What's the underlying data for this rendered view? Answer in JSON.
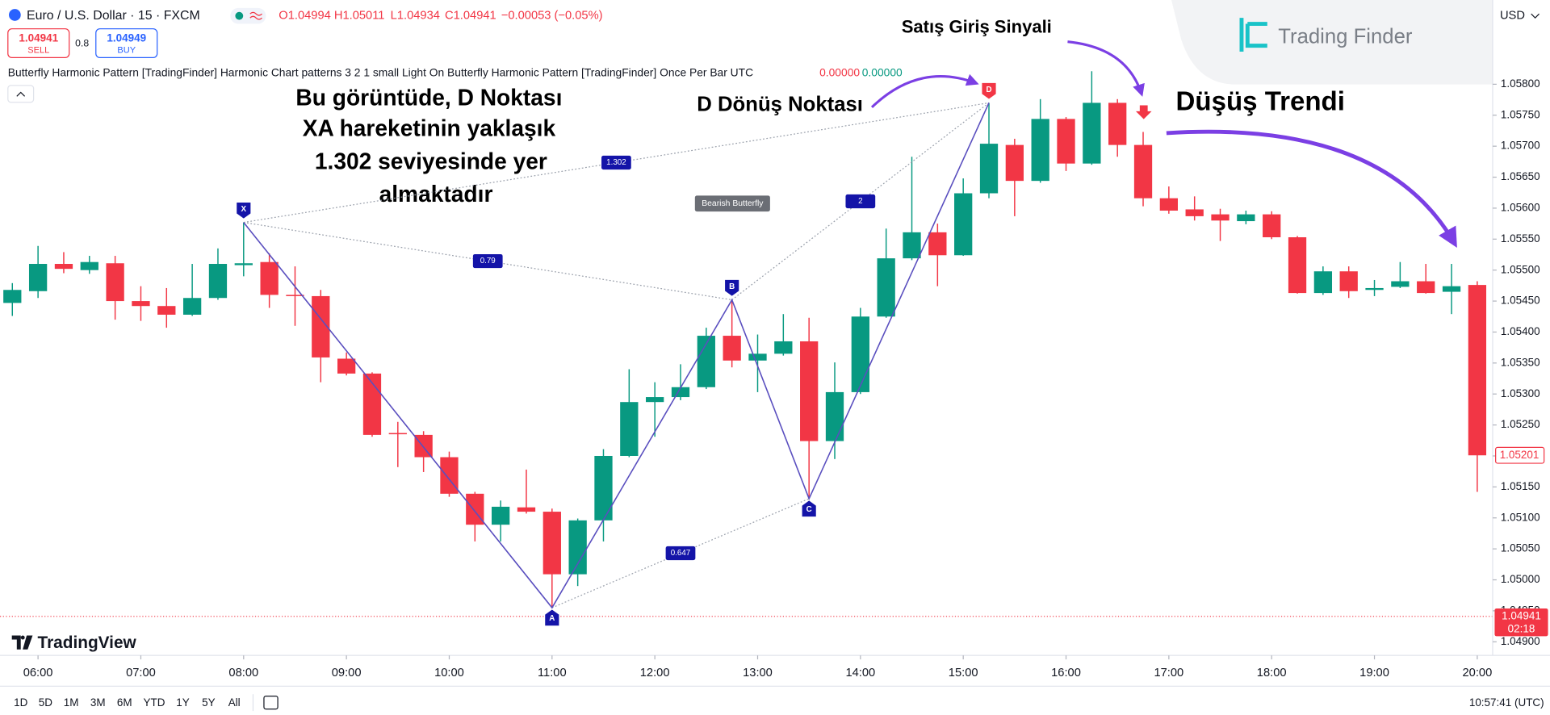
{
  "header": {
    "symbol": "Euro / U.S. Dollar · 15 · FXCM",
    "open": "O1.04994",
    "high": "H1.05011",
    "low": "L1.04934",
    "close": "C1.04941",
    "change": "−0.00053 (−0.05%)",
    "sell_price": "1.04941",
    "sell": "SELL",
    "spread": "0.8",
    "buy_price": "1.04949",
    "buy": "BUY",
    "indicator": "Butterfly Harmonic Pattern [TradingFinder] Harmonic Chart patterns 3 2 1 small Light On Butterfly Harmonic Pattern [TradingFinder] Once Per Bar UTC",
    "indicator_value_1": "0.00000",
    "indicator_value_2": "0.00000",
    "currency": "USD"
  },
  "brand": {
    "tradingfinder": "Trading Finder",
    "tradingview": "TradingView"
  },
  "footer": {
    "ranges": [
      "1D",
      "5D",
      "1M",
      "3M",
      "6M",
      "YTD",
      "1Y",
      "5Y",
      "All"
    ],
    "clock": "10:57:41 (UTC)"
  },
  "annotations": {
    "explanation": [
      "Bu görüntüde, D Noktası",
      "XA hareketinin yaklaşık",
      "1.302 seviyesinde yer",
      "almaktadır"
    ],
    "entry_signal": "Satış Giriş Sinyali",
    "d_point": "D Dönüş Noktası",
    "trend": "Düşüş Trendi"
  },
  "chart_data": {
    "type": "candlestick",
    "x": [
      5.75,
      6,
      6.25,
      6.5,
      6.75,
      7,
      7.25,
      7.5,
      7.75,
      8,
      8.25,
      8.5,
      8.75,
      9,
      9.25,
      9.5,
      9.75,
      10,
      10.25,
      10.5,
      10.75,
      11,
      11.25,
      11.5,
      11.75,
      12,
      12.25,
      12.5,
      12.75,
      13,
      13.25,
      13.5,
      13.75,
      14,
      14.25,
      14.5,
      14.75,
      15,
      15.25,
      15.5,
      15.75,
      16,
      16.25,
      16.5,
      16.75,
      17,
      17.25,
      17.5,
      17.75,
      18,
      18.25,
      18.5,
      18.75,
      19,
      19.25,
      19.5,
      19.75,
      20
    ],
    "open": [
      1.05447,
      1.05466,
      1.0551,
      1.055,
      1.05511,
      1.0545,
      1.05442,
      1.05428,
      1.05455,
      1.05508,
      1.05513,
      1.0546,
      1.05458,
      1.05357,
      1.05333,
      1.05237,
      1.05234,
      1.05198,
      1.05139,
      1.05089,
      1.05117,
      1.0511,
      1.05009,
      1.05096,
      1.052,
      1.05287,
      1.05295,
      1.05311,
      1.05394,
      1.05354,
      1.05365,
      1.05385,
      1.05224,
      1.05303,
      1.05425,
      1.05519,
      1.05561,
      1.05524,
      1.05624,
      1.05702,
      1.05644,
      1.05744,
      1.05672,
      1.0577,
      1.05702,
      1.05616,
      1.05598,
      1.0559,
      1.05579,
      1.0559,
      1.05553,
      1.05463,
      1.05498,
      1.05468,
      1.05473,
      1.05482,
      1.05465,
      1.05476
    ],
    "high": [
      1.05479,
      1.05539,
      1.05529,
      1.05523,
      1.05523,
      1.05474,
      1.05471,
      1.0551,
      1.05535,
      1.05577,
      1.05527,
      1.05506,
      1.05468,
      1.05367,
      1.05335,
      1.05255,
      1.0524,
      1.05207,
      1.05142,
      1.05128,
      1.05178,
      1.05115,
      1.05099,
      1.05211,
      1.0534,
      1.05319,
      1.05348,
      1.05407,
      1.05452,
      1.05396,
      1.05429,
      1.05423,
      1.05351,
      1.05439,
      1.05567,
      1.05683,
      1.05575,
      1.05648,
      1.0577,
      1.05712,
      1.05776,
      1.05747,
      1.05821,
      1.05776,
      1.05723,
      1.05635,
      1.05619,
      1.05599,
      1.05596,
      1.05595,
      1.05555,
      1.05506,
      1.05506,
      1.05484,
      1.05513,
      1.0551,
      1.0551,
      1.05482
    ],
    "low": [
      1.05426,
      1.05455,
      1.05495,
      1.05494,
      1.0542,
      1.05418,
      1.05407,
      1.05426,
      1.05452,
      1.0549,
      1.05439,
      1.0541,
      1.05319,
      1.0533,
      1.05231,
      1.05182,
      1.05174,
      1.05134,
      1.05062,
      1.05062,
      1.05107,
      1.04955,
      1.0499,
      1.05062,
      1.05198,
      1.05231,
      1.0529,
      1.05308,
      1.05343,
      1.05303,
      1.05362,
      1.05131,
      1.05195,
      1.053,
      1.05423,
      1.05516,
      1.05474,
      1.05523,
      1.05616,
      1.05587,
      1.05641,
      1.0566,
      1.0567,
      1.05683,
      1.05603,
      1.05591,
      1.0558,
      1.05547,
      1.05574,
      1.0555,
      1.05462,
      1.0546,
      1.05455,
      1.05458,
      1.05471,
      1.05462,
      1.05429,
      1.05142
    ],
    "close": [
      1.05468,
      1.0551,
      1.05502,
      1.05513,
      1.0545,
      1.05442,
      1.05428,
      1.05455,
      1.0551,
      1.05511,
      1.0546,
      1.05458,
      1.05359,
      1.05333,
      1.05234,
      1.05235,
      1.05198,
      1.05139,
      1.05089,
      1.05118,
      1.0511,
      1.05009,
      1.05096,
      1.052,
      1.05287,
      1.05295,
      1.05311,
      1.05394,
      1.05354,
      1.05365,
      1.05385,
      1.05224,
      1.05303,
      1.05425,
      1.05519,
      1.05561,
      1.05524,
      1.05624,
      1.05704,
      1.05644,
      1.05744,
      1.05672,
      1.0577,
      1.05702,
      1.05616,
      1.05596,
      1.05587,
      1.0558,
      1.0559,
      1.05553,
      1.05463,
      1.05498,
      1.05466,
      1.05471,
      1.05482,
      1.05463,
      1.05474,
      1.05201
    ],
    "up_color": "#089981",
    "down_color": "#f23645",
    "xlim": [
      5.63,
      20.15
    ],
    "xticks": [
      {
        "value": 6,
        "label": "06:00"
      },
      {
        "value": 7,
        "label": "07:00"
      },
      {
        "value": 8,
        "label": "08:00"
      },
      {
        "value": 9,
        "label": "09:00"
      },
      {
        "value": 10,
        "label": "10:00"
      },
      {
        "value": 11,
        "label": "11:00"
      },
      {
        "value": 12,
        "label": "12:00"
      },
      {
        "value": 13,
        "label": "13:00"
      },
      {
        "value": 14,
        "label": "14:00"
      },
      {
        "value": 15,
        "label": "15:00"
      },
      {
        "value": 16,
        "label": "16:00"
      },
      {
        "value": 17,
        "label": "17:00"
      },
      {
        "value": 18,
        "label": "18:00"
      },
      {
        "value": 19,
        "label": "19:00"
      },
      {
        "value": 20,
        "label": "20:00"
      }
    ],
    "ylim": [
      1.04878,
      1.05936
    ],
    "yticks": [
      {
        "value": 1.049,
        "label": "1.04900"
      },
      {
        "value": 1.0495,
        "label": "1.04950"
      },
      {
        "value": 1.05,
        "label": "1.05000"
      },
      {
        "value": 1.0505,
        "label": "1.05050"
      },
      {
        "value": 1.051,
        "label": "1.05100"
      },
      {
        "value": 1.0515,
        "label": "1.05150"
      },
      {
        "value": 1.052,
        "label": "1.05200"
      },
      {
        "value": 1.0525,
        "label": "1.05250"
      },
      {
        "value": 1.053,
        "label": "1.05300"
      },
      {
        "value": 1.0535,
        "label": "1.05350"
      },
      {
        "value": 1.054,
        "label": "1.05400"
      },
      {
        "value": 1.0545,
        "label": "1.05450"
      },
      {
        "value": 1.055,
        "label": "1.05500"
      },
      {
        "value": 1.0555,
        "label": "1.05550"
      },
      {
        "value": 1.056,
        "label": "1.05600"
      },
      {
        "value": 1.0565,
        "label": "1.05650"
      },
      {
        "value": 1.057,
        "label": "1.05700"
      },
      {
        "value": 1.0575,
        "label": "1.05750"
      },
      {
        "value": 1.058,
        "label": "1.05800"
      }
    ],
    "pattern": {
      "name": "Bearish Butterfly",
      "points": [
        {
          "label": "X",
          "x": 8,
          "y": 1.05577
        },
        {
          "label": "A",
          "x": 11,
          "y": 1.04955
        },
        {
          "label": "B",
          "x": 12.75,
          "y": 1.05452
        },
        {
          "label": "C",
          "x": 13.5,
          "y": 1.05131
        },
        {
          "label": "D",
          "x": 15.25,
          "y": 1.0577
        }
      ],
      "ratios": [
        1.302,
        0.79,
        2,
        0.647
      ]
    },
    "last_price": 1.04941,
    "countdown": "02:18",
    "marker_price": 1.05201
  }
}
